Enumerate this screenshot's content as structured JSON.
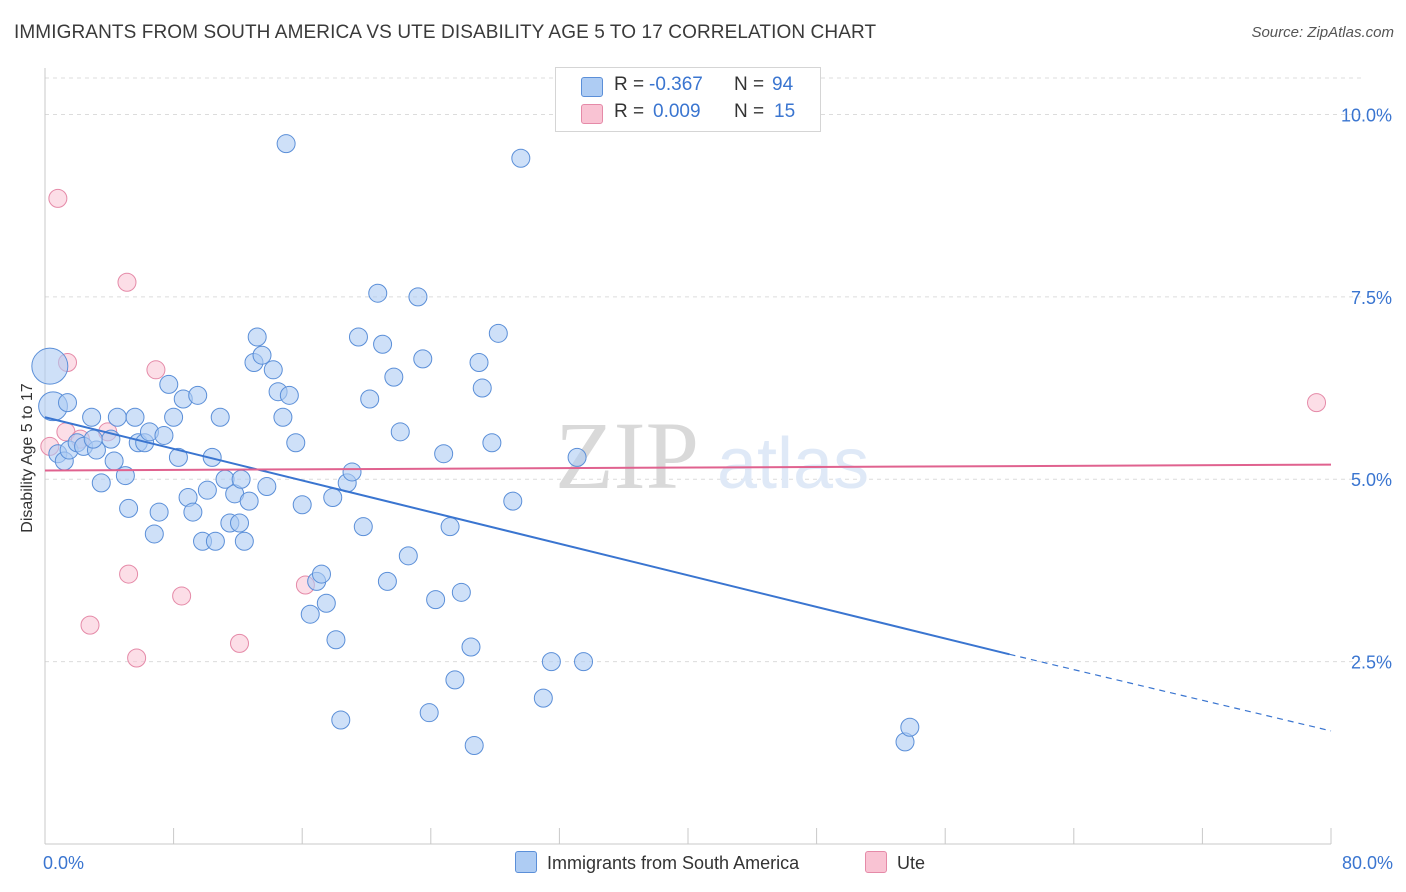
{
  "title": "IMMIGRANTS FROM SOUTH AMERICA VS UTE DISABILITY AGE 5 TO 17 CORRELATION CHART",
  "source": "Source: ZipAtlas.com",
  "watermark": {
    "zip": "ZIP",
    "atlas": "atlas"
  },
  "stats": {
    "row1": {
      "r_label": "R =",
      "r_value": "-0.367",
      "n_label": "N =",
      "n_value": "94"
    },
    "row2": {
      "r_label": "R =",
      "r_value": "0.009",
      "n_label": "N =",
      "n_value": "15"
    }
  },
  "legend": {
    "series1": "Immigrants from South America",
    "series2": "Ute"
  },
  "colors": {
    "blue_fill": "#aeccf3",
    "blue_stroke": "#5b8fd8",
    "blue_line": "#3a75d0",
    "pink_fill": "#f9c3d3",
    "pink_stroke": "#e58aa8",
    "pink_line": "#e0628f",
    "grid": "#dcdcdc",
    "tick_text": "#3a75d0"
  },
  "chart_data": {
    "type": "scatter",
    "title": "IMMIGRANTS FROM SOUTH AMERICA VS UTE DISABILITY AGE 5 TO 17 CORRELATION CHART",
    "xlabel": "",
    "ylabel": "Disability Age 5 to 17",
    "xlim": [
      0,
      80
    ],
    "ylim": [
      0,
      10.5
    ],
    "x_tick_labels": [
      "0.0%",
      "80.0%"
    ],
    "y_ticks": [
      2.5,
      5.0,
      7.5,
      10.0
    ],
    "y_tick_labels": [
      "2.5%",
      "5.0%",
      "7.5%",
      "10.0%"
    ],
    "grid": true,
    "series": [
      {
        "name": "Immigrants from South America",
        "r": -0.367,
        "n": 94,
        "trend": {
          "x0": 0,
          "y0": 5.85,
          "x1": 60,
          "y1": 2.6,
          "dash_to_x": 80,
          "dash_to_y": 1.55
        },
        "points": [
          [
            0.3,
            6.55,
            20
          ],
          [
            0.5,
            6.0,
            16
          ],
          [
            0.8,
            5.35,
            10
          ],
          [
            1.2,
            5.25,
            10
          ],
          [
            1.5,
            5.4,
            10
          ],
          [
            2.0,
            5.5,
            10
          ],
          [
            2.4,
            5.45,
            10
          ],
          [
            1.4,
            6.05,
            10
          ],
          [
            2.9,
            5.85,
            10
          ],
          [
            3.2,
            5.4,
            10
          ],
          [
            3.5,
            4.95,
            10
          ],
          [
            4.1,
            5.55,
            10
          ],
          [
            4.3,
            5.25,
            10
          ],
          [
            4.5,
            5.85,
            10
          ],
          [
            5.0,
            5.05,
            10
          ],
          [
            5.2,
            4.6,
            10
          ],
          [
            5.6,
            5.85,
            10
          ],
          [
            5.8,
            5.5,
            10
          ],
          [
            6.2,
            5.5,
            10
          ],
          [
            6.5,
            5.65,
            10
          ],
          [
            6.8,
            4.25,
            10
          ],
          [
            7.1,
            4.55,
            10
          ],
          [
            7.4,
            5.6,
            10
          ],
          [
            7.7,
            6.3,
            10
          ],
          [
            8.0,
            5.85,
            10
          ],
          [
            8.3,
            5.3,
            10
          ],
          [
            8.6,
            6.1,
            10
          ],
          [
            8.9,
            4.75,
            10
          ],
          [
            9.2,
            4.55,
            10
          ],
          [
            9.5,
            6.15,
            10
          ],
          [
            9.8,
            4.15,
            10
          ],
          [
            10.1,
            4.85,
            10
          ],
          [
            10.4,
            5.3,
            10
          ],
          [
            10.6,
            4.15,
            10
          ],
          [
            10.9,
            5.85,
            10
          ],
          [
            11.2,
            5.0,
            10
          ],
          [
            11.5,
            4.4,
            10
          ],
          [
            11.8,
            4.8,
            10
          ],
          [
            12.1,
            4.4,
            10
          ],
          [
            12.4,
            4.15,
            10
          ],
          [
            12.7,
            4.7,
            10
          ],
          [
            13.0,
            6.6,
            10
          ],
          [
            13.2,
            6.95,
            10
          ],
          [
            13.5,
            6.7,
            10
          ],
          [
            13.8,
            4.9,
            10
          ],
          [
            14.2,
            6.5,
            10
          ],
          [
            14.5,
            6.2,
            10
          ],
          [
            14.8,
            5.85,
            10
          ],
          [
            15.2,
            6.15,
            10
          ],
          [
            15.6,
            5.5,
            10
          ],
          [
            16.0,
            4.65,
            10
          ],
          [
            16.5,
            3.15,
            10
          ],
          [
            16.9,
            3.6,
            10
          ],
          [
            17.2,
            3.7,
            10
          ],
          [
            17.5,
            3.3,
            10
          ],
          [
            17.9,
            4.75,
            10
          ],
          [
            18.1,
            2.8,
            10
          ],
          [
            18.4,
            1.7,
            10
          ],
          [
            18.8,
            4.95,
            10
          ],
          [
            19.1,
            5.1,
            10
          ],
          [
            19.5,
            6.95,
            10
          ],
          [
            19.8,
            4.35,
            10
          ],
          [
            20.2,
            6.1,
            10
          ],
          [
            20.7,
            7.55,
            10
          ],
          [
            21.0,
            6.85,
            10
          ],
          [
            21.3,
            3.6,
            10
          ],
          [
            21.7,
            6.4,
            10
          ],
          [
            22.1,
            5.65,
            10
          ],
          [
            22.6,
            3.95,
            10
          ],
          [
            23.2,
            7.5,
            10
          ],
          [
            23.5,
            6.65,
            10
          ],
          [
            23.9,
            1.8,
            10
          ],
          [
            24.3,
            3.35,
            10
          ],
          [
            24.8,
            5.35,
            10
          ],
          [
            25.2,
            4.35,
            10
          ],
          [
            25.5,
            2.25,
            10
          ],
          [
            25.9,
            3.45,
            10
          ],
          [
            26.5,
            2.7,
            10
          ],
          [
            26.7,
            1.35,
            10
          ],
          [
            27.0,
            6.6,
            10
          ],
          [
            27.2,
            6.25,
            10
          ],
          [
            27.8,
            5.5,
            10
          ],
          [
            28.2,
            7.0,
            10
          ],
          [
            29.1,
            4.7,
            10
          ],
          [
            29.6,
            9.4,
            10
          ],
          [
            31.0,
            2.0,
            10
          ],
          [
            31.5,
            2.5,
            10
          ],
          [
            33.1,
            5.3,
            10
          ],
          [
            33.5,
            2.5,
            10
          ],
          [
            53.5,
            1.4,
            10
          ],
          [
            53.8,
            1.6,
            10
          ],
          [
            15.0,
            9.6,
            10
          ],
          [
            12.2,
            5.0,
            10
          ],
          [
            3.0,
            5.55,
            10
          ]
        ]
      },
      {
        "name": "Ute",
        "r": 0.009,
        "n": 15,
        "trend": {
          "x0": 0,
          "y0": 5.12,
          "x1": 80,
          "y1": 5.2
        },
        "points": [
          [
            0.3,
            5.45,
            10
          ],
          [
            0.8,
            8.85,
            10
          ],
          [
            1.3,
            5.65,
            10
          ],
          [
            2.2,
            5.55,
            10
          ],
          [
            2.8,
            3.0,
            10
          ],
          [
            1.4,
            6.6,
            10
          ],
          [
            3.9,
            5.65,
            10
          ],
          [
            5.1,
            7.7,
            10
          ],
          [
            5.2,
            3.7,
            10
          ],
          [
            5.7,
            2.55,
            10
          ],
          [
            6.9,
            6.5,
            10
          ],
          [
            8.5,
            3.4,
            10
          ],
          [
            12.1,
            2.75,
            10
          ],
          [
            16.2,
            3.55,
            10
          ],
          [
            79.1,
            6.05,
            10
          ]
        ]
      }
    ]
  }
}
